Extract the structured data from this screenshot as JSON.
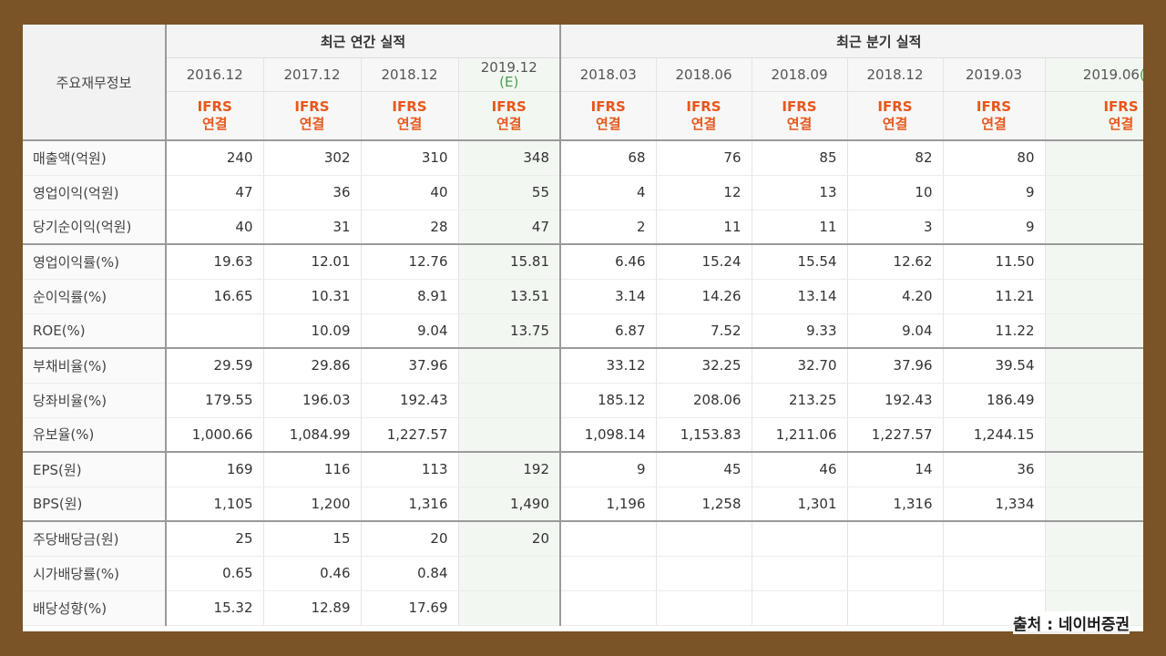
{
  "table": {
    "corner_label": "주요재무정보",
    "annual_header": "최근 연간 실적",
    "quarterly_header": "최근 분기 실적",
    "annual_dates": [
      "2016.12",
      "2017.12",
      "2018.12",
      "2019.12"
    ],
    "annual_estimate_marks": [
      "",
      "",
      "",
      "(E)"
    ],
    "quarterly_dates": [
      "2018.03",
      "2018.06",
      "2018.09",
      "2018.12",
      "2019.03",
      "2019.06"
    ],
    "quarterly_estimate_marks": [
      "",
      "",
      "",
      "",
      "",
      "(E)"
    ],
    "ifrs_label": "IFRS",
    "ifrs_sub": "연결",
    "rows": [
      {
        "label": "매출액(억원)",
        "values": [
          "240",
          "302",
          "310",
          "348",
          "68",
          "76",
          "85",
          "82",
          "80",
          ""
        ]
      },
      {
        "label": "영업이익(억원)",
        "values": [
          "47",
          "36",
          "40",
          "55",
          "4",
          "12",
          "13",
          "10",
          "9",
          ""
        ]
      },
      {
        "label": "당기순이익(억원)",
        "values": [
          "40",
          "31",
          "28",
          "47",
          "2",
          "11",
          "11",
          "3",
          "9",
          ""
        ]
      },
      {
        "label": "영업이익률(%)",
        "values": [
          "19.63",
          "12.01",
          "12.76",
          "15.81",
          "6.46",
          "15.24",
          "15.54",
          "12.62",
          "11.50",
          ""
        ]
      },
      {
        "label": "순이익률(%)",
        "values": [
          "16.65",
          "10.31",
          "8.91",
          "13.51",
          "3.14",
          "14.26",
          "13.14",
          "4.20",
          "11.21",
          ""
        ]
      },
      {
        "label": "ROE(%)",
        "values": [
          "",
          "10.09",
          "9.04",
          "13.75",
          "6.87",
          "7.52",
          "9.33",
          "9.04",
          "11.22",
          ""
        ]
      },
      {
        "label": "부채비율(%)",
        "values": [
          "29.59",
          "29.86",
          "37.96",
          "",
          "33.12",
          "32.25",
          "32.70",
          "37.96",
          "39.54",
          ""
        ]
      },
      {
        "label": "당좌비율(%)",
        "values": [
          "179.55",
          "196.03",
          "192.43",
          "",
          "185.12",
          "208.06",
          "213.25",
          "192.43",
          "186.49",
          ""
        ]
      },
      {
        "label": "유보율(%)",
        "values": [
          "1,000.66",
          "1,084.99",
          "1,227.57",
          "",
          "1,098.14",
          "1,153.83",
          "1,211.06",
          "1,227.57",
          "1,244.15",
          ""
        ]
      },
      {
        "label": "EPS(원)",
        "values": [
          "169",
          "116",
          "113",
          "192",
          "9",
          "45",
          "46",
          "14",
          "36",
          ""
        ]
      },
      {
        "label": "BPS(원)",
        "values": [
          "1,105",
          "1,200",
          "1,316",
          "1,490",
          "1,196",
          "1,258",
          "1,301",
          "1,316",
          "1,334",
          ""
        ]
      },
      {
        "label": "주당배당금(원)",
        "values": [
          "25",
          "15",
          "20",
          "20",
          "",
          "",
          "",
          "",
          "",
          ""
        ]
      },
      {
        "label": "시가배당률(%)",
        "values": [
          "0.65",
          "0.46",
          "0.84",
          "",
          "",
          "",
          "",
          "",
          "",
          ""
        ]
      },
      {
        "label": "배당성향(%)",
        "values": [
          "15.32",
          "12.89",
          "17.69",
          "",
          "",
          "",
          "",
          "",
          "",
          ""
        ]
      }
    ]
  },
  "source_note": "출처 : 네이버증권",
  "colors": {
    "frame": "#7a5426",
    "ifrs_text": "#e8571c",
    "estimate_bg": "#f2f8f1",
    "estimate_mark": "#4aa04a"
  }
}
